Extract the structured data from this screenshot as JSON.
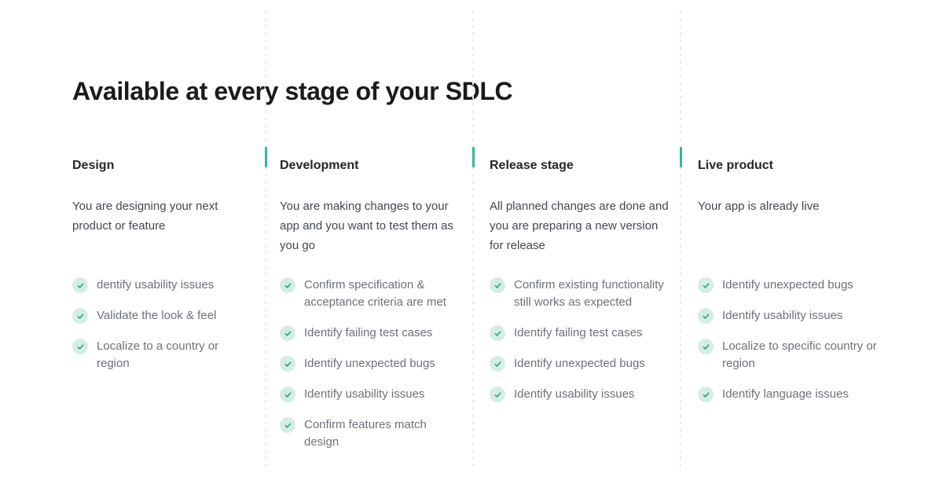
{
  "page": {
    "title": "Available at every stage of your SDLC"
  },
  "theme": {
    "accent_teal": "#30b7a1",
    "divider_dash": "#e9edeb",
    "check_circle_bg": "#d6ede5",
    "check_mark": "#2fa286",
    "title_color": "#1b1b1d",
    "heading_color": "#26262a",
    "description_color": "#43474d",
    "item_color": "#6d7177"
  },
  "columns": [
    {
      "title": "Design",
      "description": "You are designing your next product or feature",
      "items": [
        "dentify usability issues",
        "Validate the look & feel",
        "Localize to a country or region"
      ]
    },
    {
      "title": "Development",
      "description": "You are making changes to your app and you want to test them as you go",
      "items": [
        "Confirm specification & acceptance criteria are met",
        "Identify failing test cases",
        "Identify unexpected bugs",
        "Identify usability issues",
        "Confirm features match design"
      ]
    },
    {
      "title": "Release stage",
      "description": "All planned changes are done and you are preparing a new version for release",
      "items": [
        "Confirm existing functionality still works as expected",
        "Identify failing test cases",
        "Identify unexpected bugs",
        "Identify usability issues"
      ]
    },
    {
      "title": "Live product",
      "description": "Your app is already live",
      "items": [
        "Identify unexpected bugs",
        "Identify usability issues",
        "Localize to specific country or region",
        "Identify language issues"
      ]
    }
  ]
}
